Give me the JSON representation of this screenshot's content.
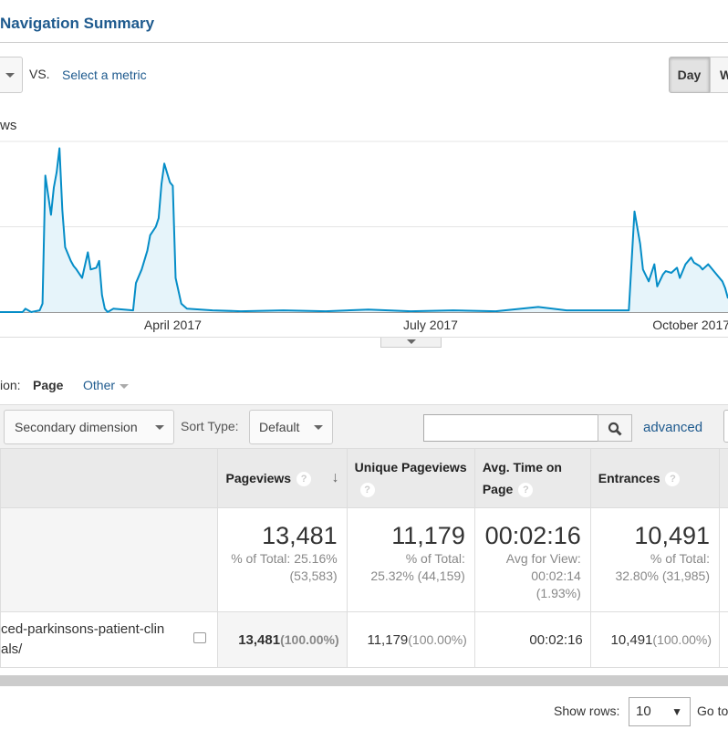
{
  "header": {
    "title": "Navigation Summary",
    "vs": "VS.",
    "select_metric": "Select a metric",
    "day": "Day",
    "week": "W"
  },
  "chart_data": {
    "type": "area",
    "series_name": "ws",
    "color": "#058dc7",
    "fill": "#e6f4fa",
    "x_unit": "days from start",
    "xlim": [
      0,
      257
    ],
    "ylim": [
      0,
      100
    ],
    "gridlines": [
      0,
      50,
      100
    ],
    "x_ticks": [
      {
        "day": 61,
        "label": "April 2017"
      },
      {
        "day": 152,
        "label": "July 2017"
      },
      {
        "day": 244,
        "label": "October 2017"
      }
    ],
    "points": [
      [
        0,
        0
      ],
      [
        8,
        0
      ],
      [
        9,
        2
      ],
      [
        11,
        0
      ],
      [
        14,
        1
      ],
      [
        15,
        5
      ],
      [
        16,
        80
      ],
      [
        18,
        57
      ],
      [
        19,
        73
      ],
      [
        20,
        82
      ],
      [
        21,
        96
      ],
      [
        22,
        60
      ],
      [
        23,
        38
      ],
      [
        25,
        30
      ],
      [
        26,
        27
      ],
      [
        27,
        25
      ],
      [
        29,
        20
      ],
      [
        31,
        35
      ],
      [
        32,
        25
      ],
      [
        34,
        26
      ],
      [
        35,
        30
      ],
      [
        36,
        10
      ],
      [
        37,
        2
      ],
      [
        38,
        0
      ],
      [
        40,
        2
      ],
      [
        47,
        1
      ],
      [
        48,
        17
      ],
      [
        50,
        25
      ],
      [
        52,
        36
      ],
      [
        53,
        45
      ],
      [
        55,
        50
      ],
      [
        56,
        55
      ],
      [
        57,
        75
      ],
      [
        58,
        87
      ],
      [
        60,
        76
      ],
      [
        61,
        74
      ],
      [
        62,
        20
      ],
      [
        64,
        5
      ],
      [
        66,
        2
      ],
      [
        75,
        1
      ],
      [
        85,
        0.5
      ],
      [
        100,
        1
      ],
      [
        115,
        0.5
      ],
      [
        130,
        1.5
      ],
      [
        145,
        0.5
      ],
      [
        160,
        1
      ],
      [
        175,
        0.5
      ],
      [
        190,
        3
      ],
      [
        200,
        1
      ],
      [
        215,
        1
      ],
      [
        222,
        1
      ],
      [
        223,
        30
      ],
      [
        224,
        59
      ],
      [
        226,
        40
      ],
      [
        227,
        25
      ],
      [
        229,
        18
      ],
      [
        231,
        28
      ],
      [
        232,
        15
      ],
      [
        234,
        22
      ],
      [
        235,
        24
      ],
      [
        237,
        23
      ],
      [
        239,
        26
      ],
      [
        240,
        20
      ],
      [
        242,
        28
      ],
      [
        244,
        32
      ],
      [
        245,
        29
      ],
      [
        247,
        27
      ],
      [
        248,
        25
      ],
      [
        250,
        28
      ],
      [
        252,
        24
      ],
      [
        253,
        22
      ],
      [
        255,
        18
      ],
      [
        256,
        14
      ],
      [
        257,
        8
      ]
    ]
  },
  "dimension": {
    "label": "ion:",
    "page": "Page",
    "other": "Other"
  },
  "toolbar": {
    "secondary": "Secondary dimension",
    "sort_label": "Sort Type:",
    "sort_value": "Default",
    "search_value": "",
    "advanced": "advanced"
  },
  "table": {
    "headers": {
      "pageviews": "Pageviews",
      "unique": "Unique Pageviews",
      "avgtime": "Avg. Time on Page",
      "entrances": "Entrances"
    },
    "totals": {
      "pageviews": {
        "value": "13,481",
        "sub1": "% of Total: 25.16%",
        "sub2": "(53,583)"
      },
      "unique": {
        "value": "11,179",
        "sub1": "% of Total:",
        "sub2": "25.32% (44,159)"
      },
      "avgtime": {
        "value": "00:02:16",
        "sub1": "Avg for View:",
        "sub2": "00:02:14",
        "sub3": "(1.93%)"
      },
      "entrances": {
        "value": "10,491",
        "sub1": "% of Total:",
        "sub2": "32.80% (31,985)"
      }
    },
    "row": {
      "page_line1": "ced-parkinsons-patient-clin",
      "page_line2": "als/",
      "pageviews": "13,481",
      "pageviews_pct": "(100.00%)",
      "unique": "11,179",
      "unique_pct": "(100.00%)",
      "avgtime": "00:02:16",
      "entrances": "10,491",
      "entrances_pct": "(100.00%)"
    }
  },
  "footer": {
    "show_rows": "Show rows:",
    "rows_value": "10",
    "goto": "Go to"
  }
}
